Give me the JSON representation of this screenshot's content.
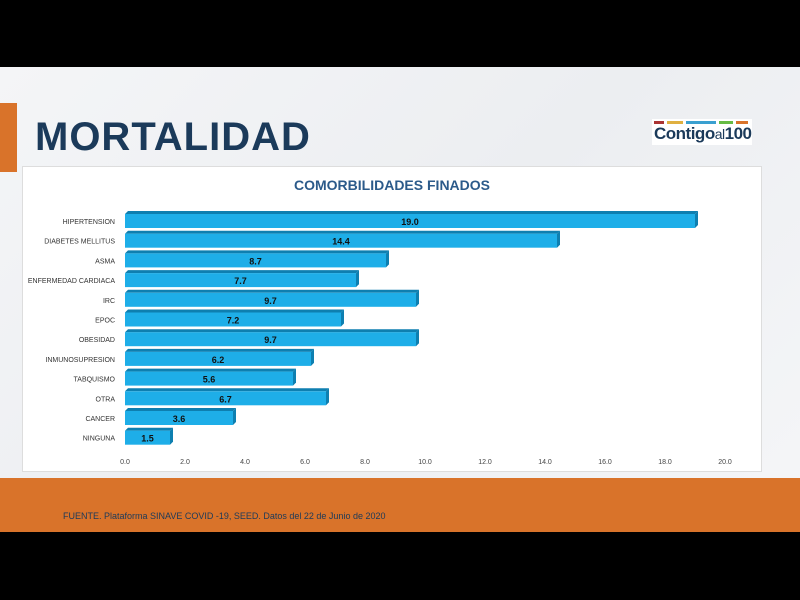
{
  "slide": {
    "title": "MORTALIDAD",
    "logo_text": "Contigo al 100",
    "source": "FUENTE. Plataforma SINAVE COVID -19, SEED. Datos del 22 de Junio de 2020"
  },
  "colors": {
    "bar": "#1eaee8",
    "bar_edge": "#0e7fb0",
    "accent": "#d9732a",
    "navy": "#1b3a5a"
  },
  "chart_data": {
    "type": "bar",
    "orientation": "horizontal",
    "title": "COMORBILIDADES FINADOS",
    "categories": [
      "HIPERTENSION",
      "DIABETES MELLITUS",
      "ASMA",
      "ENFERMEDAD CARDIACA",
      "IRC",
      "EPOC",
      "OBESIDAD",
      "INMUNOSUPRESION",
      "TABQUISMO",
      "OTRA",
      "CANCER",
      "NINGUNA"
    ],
    "values": [
      19.0,
      14.4,
      8.7,
      7.7,
      9.7,
      7.2,
      9.7,
      6.2,
      5.6,
      6.7,
      3.6,
      1.5
    ],
    "xlim": [
      0,
      20
    ],
    "xticks": [
      "0.0",
      "2.0",
      "4.0",
      "6.0",
      "8.0",
      "10.0",
      "12.0",
      "14.0",
      "16.0",
      "18.0",
      "20.0"
    ],
    "grid": false,
    "legend": "none"
  }
}
